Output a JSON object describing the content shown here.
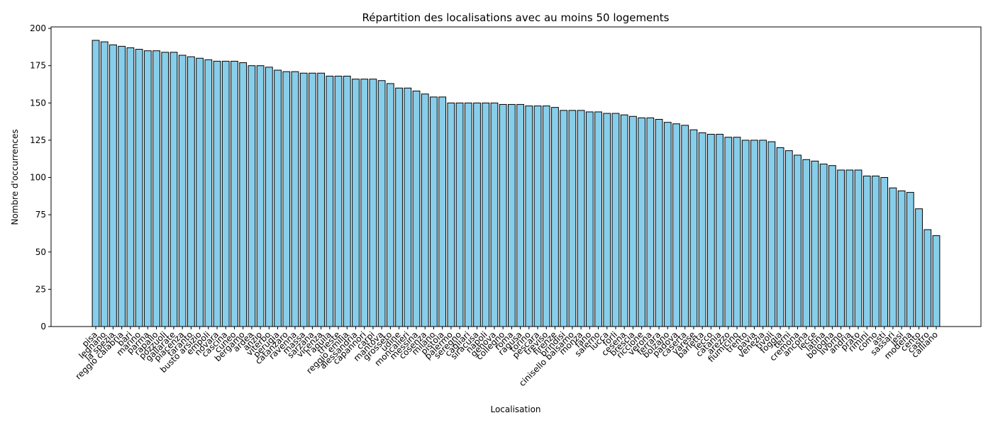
{
  "chart_data": {
    "type": "bar",
    "title": "Répartition des localisations avec au moins 50 logements",
    "x_label": "Localisation",
    "y_label": "Nombre d'occurrences",
    "color": "#87ceeb",
    "edge_color": "#000000",
    "grid": false,
    "ylim": [
      0,
      201
    ],
    "yticks": [
      0,
      25,
      50,
      75,
      100,
      125,
      150,
      175,
      200
    ],
    "categories": [
      "pisa",
      "legnano",
      "la spezia",
      "reggio calabria",
      "bari",
      "marino",
      "parma",
      "rapallo",
      "pozzuoli",
      "gallarate",
      "piacenza",
      "taranto",
      "busto arsizio",
      "empoli",
      "novara",
      "cascina",
      "cuneo",
      "bergamo",
      "ardea",
      "anzio",
      "viterbo",
      "perugia",
      "catanzaro",
      "ravenna",
      "massa",
      "sarzana",
      "vicenza",
      "l'aquila",
      "trieste",
      "reggio emilia",
      "alessandria",
      "capannori",
      "carpi",
      "mantova",
      "grosseto",
      "udine",
      "moncalieri",
      "messina",
      "cosenza",
      "milano",
      "pistoia",
      "palermo",
      "seregno",
      "cagliari",
      "siracusa",
      "napoli",
      "genova",
      "collegno",
      "roma",
      "ragusa",
      "torino",
      "pescara",
      "treviso",
      "firenze",
      "brindisi",
      "cinisello balsamo",
      "monza",
      "fano",
      "salerno",
      "lucca",
      "forli",
      "cesena",
      "brescia",
      "riccione",
      "verona",
      "ferrara",
      "bolzano",
      "padova",
      "caserta",
      "varese",
      "barletta",
      "lecco",
      "catania",
      "arezzo",
      "fiumicino",
      "trento",
      "pavia",
      "venezia",
      "tivoli",
      "foggia",
      "terni",
      "cremona",
      "ancona",
      "lecce",
      "latina",
      "bologna",
      "livorno",
      "andria",
      "prato",
      "rimini",
      "como",
      "asti",
      "sassari",
      "jesi",
      "modena",
      "cento",
      "castro",
      "calliano"
    ],
    "values": [
      192,
      191,
      189,
      188,
      187,
      186,
      185,
      185,
      184,
      184,
      182,
      181,
      180,
      179,
      178,
      178,
      178,
      177,
      175,
      175,
      174,
      172,
      171,
      171,
      170,
      170,
      170,
      168,
      168,
      168,
      166,
      166,
      166,
      165,
      163,
      160,
      160,
      158,
      156,
      154,
      154,
      150,
      150,
      150,
      150,
      150,
      150,
      149,
      149,
      149,
      148,
      148,
      148,
      147,
      145,
      145,
      145,
      144,
      144,
      143,
      143,
      142,
      141,
      140,
      140,
      139,
      137,
      136,
      135,
      132,
      130,
      129,
      129,
      127,
      127,
      125,
      125,
      125,
      124,
      120,
      118,
      115,
      112,
      111,
      109,
      108,
      105,
      105,
      105,
      101,
      101,
      100,
      93,
      91,
      90,
      79,
      65,
      61
    ]
  }
}
